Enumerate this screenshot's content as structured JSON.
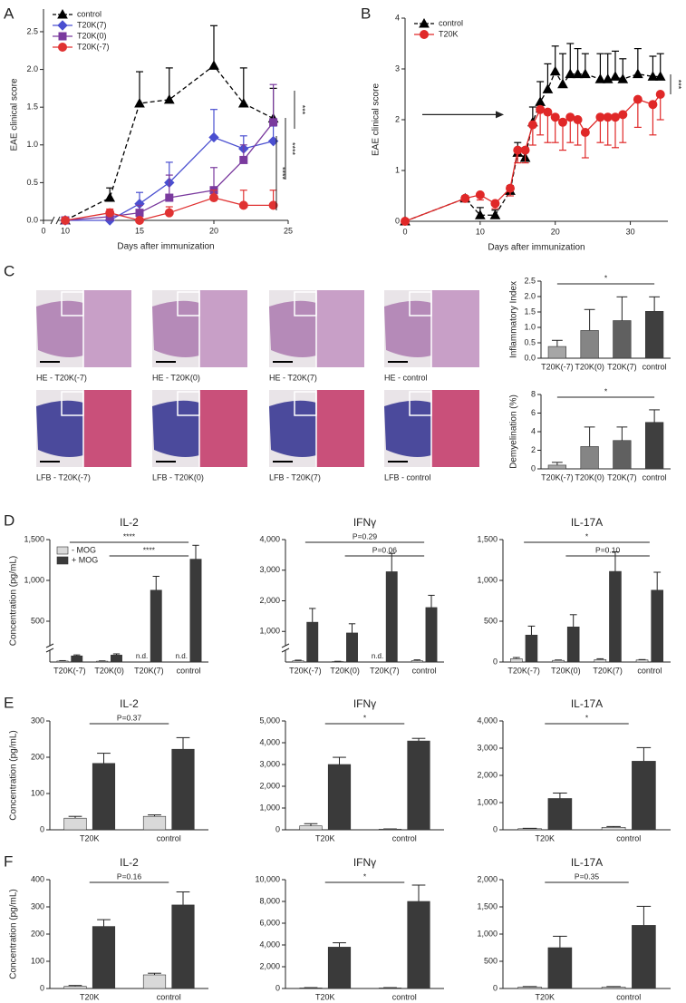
{
  "figure": {
    "panels": [
      "A",
      "B",
      "C",
      "D",
      "E",
      "F"
    ],
    "images": [
      "HE - T20K(-7)",
      "HE - T20K(0)",
      "HE - T20K(7)",
      "HE - control",
      "LFB - T20K(-7)",
      "LFB - T20K(0)",
      "LFB - T20K(7)",
      "LFB - control"
    ]
  },
  "chart_data": [
    {
      "type": "line",
      "xlabel": "Days after immunization",
      "ylabel": "EAE clinical score",
      "x": [
        10,
        13,
        15,
        17,
        20,
        22,
        24
      ],
      "xlim": [
        0,
        25
      ],
      "xticks": [
        0,
        10,
        15,
        20,
        25
      ],
      "x_axis_break": true,
      "ylim": [
        0,
        2.8
      ],
      "yticks": [
        {
          "value": 0,
          "label": "0.0"
        },
        0.5,
        {
          "value": 1,
          "label": "1.0"
        },
        1.5,
        {
          "value": 2,
          "label": "2.0"
        },
        2.5
      ],
      "legend": "upper left",
      "annotations": [
        "***",
        "****",
        "****"
      ],
      "series": [
        {
          "name": "control",
          "color": "#000000",
          "marker": "triangle",
          "dash": true,
          "error_direction": "up",
          "values": [
            0,
            0.3,
            1.55,
            1.6,
            2.05,
            1.55,
            1.35
          ],
          "errors": [
            0,
            0.13,
            0.42,
            0.42,
            0.53,
            0.47,
            0.4
          ]
        },
        {
          "name": "T20K(7)",
          "color": "#4a4fd0",
          "marker": "diamond",
          "dash": false,
          "error_direction": "up",
          "values": [
            0,
            0,
            0.22,
            0.5,
            1.1,
            0.95,
            1.05
          ],
          "errors": [
            0,
            0,
            0.15,
            0.27,
            0.37,
            0.17,
            0.2
          ]
        },
        {
          "name": "T20K(0)",
          "color": "#7a3a9e",
          "marker": "square",
          "dash": false,
          "error_direction": "up",
          "values": [
            0,
            0.05,
            0.1,
            0.3,
            0.4,
            0.8,
            1.3
          ],
          "errors": [
            0,
            0.03,
            0.1,
            0.3,
            0.3,
            0.2,
            0.5
          ]
        },
        {
          "name": "T20K(-7)",
          "color": "#e03232",
          "marker": "circle",
          "dash": false,
          "error_direction": "up",
          "values": [
            0,
            0.1,
            0,
            0.1,
            0.3,
            0.2,
            0.2
          ],
          "errors": [
            0,
            0.05,
            0,
            0.08,
            0.1,
            0.2,
            0.2
          ]
        }
      ]
    },
    {
      "type": "line",
      "xlabel": "Days after immunization",
      "ylabel": "EAE clinical score",
      "x": [
        0,
        8,
        10,
        12,
        14,
        15,
        16,
        17,
        18,
        19,
        20,
        21,
        22,
        23,
        24,
        26,
        27,
        28,
        29,
        31,
        33,
        34
      ],
      "xlim": [
        0,
        35
      ],
      "xticks": [
        0,
        10,
        20,
        30
      ],
      "ylim": [
        0,
        4
      ],
      "yticks": [
        0,
        1,
        2,
        3,
        4
      ],
      "legend": "upper left",
      "annotations": [
        "***"
      ],
      "series": [
        {
          "name": "control",
          "color": "#000000",
          "marker": "triangle",
          "dash": true,
          "error_direction": "up",
          "values": [
            0,
            0.45,
            0.12,
            0.12,
            0.6,
            1.35,
            1.25,
            1.95,
            2.35,
            2.6,
            2.95,
            2.7,
            2.9,
            2.9,
            2.9,
            2.8,
            2.8,
            2.85,
            2.8,
            2.9,
            2.85,
            2.85
          ],
          "errors": [
            0,
            0.05,
            0.15,
            0.1,
            0.1,
            0.2,
            0.2,
            0.3,
            0.4,
            0.5,
            0.5,
            0.6,
            0.6,
            0.5,
            0.4,
            0.5,
            0.5,
            0.5,
            0.4,
            0.5,
            0.4,
            0.45
          ]
        },
        {
          "name": "T20K",
          "color": "#e02828",
          "marker": "circle",
          "dash": false,
          "error_direction": "down",
          "values": [
            0,
            0.45,
            0.52,
            0.35,
            0.65,
            1.4,
            1.4,
            1.9,
            2.2,
            2.15,
            2.05,
            1.95,
            2.05,
            2.0,
            1.75,
            2.05,
            2.05,
            2.05,
            2.1,
            2.4,
            2.3,
            2.5
          ],
          "errors": [
            0,
            0.05,
            0.1,
            0.1,
            0.15,
            0.25,
            0.25,
            0.4,
            0.5,
            0.6,
            0.5,
            0.55,
            0.5,
            0.5,
            0.5,
            0.5,
            0.55,
            0.6,
            0.55,
            0.55,
            0.6,
            0.5
          ]
        }
      ]
    },
    {
      "type": "bar",
      "ylabel": "Inflammatory Index",
      "categories": [
        "T20K(-7)",
        "T20K(0)",
        "T20K(7)",
        "control"
      ],
      "ylim": [
        0,
        2.5
      ],
      "yticks": [
        {
          "value": 0,
          "label": "0.0"
        },
        0.5,
        {
          "value": 1,
          "label": "1.0"
        },
        1.5,
        {
          "value": 2,
          "label": "2.0"
        },
        2.5
      ],
      "series": [
        {
          "colors": [
            "#a6a6a6",
            "#858585",
            "#606060",
            "#3f3f3f"
          ],
          "values": [
            0.38,
            0.9,
            1.22,
            1.52
          ],
          "errors": [
            0.2,
            0.68,
            0.77,
            0.47
          ]
        }
      ],
      "brackets": [
        {
          "from": "T20K(-7)",
          "to": "control",
          "label": "*"
        }
      ]
    },
    {
      "type": "bar",
      "ylabel": "Demyelination (%)",
      "categories": [
        "T20K(-7)",
        "T20K(0)",
        "T20K(7)",
        "control"
      ],
      "ylim": [
        0,
        8
      ],
      "yticks": [
        0,
        2,
        4,
        6,
        8
      ],
      "series": [
        {
          "colors": [
            "#a6a6a6",
            "#858585",
            "#606060",
            "#3f3f3f"
          ],
          "values": [
            0.4,
            2.4,
            3.05,
            5.0
          ],
          "errors": [
            0.3,
            2.1,
            1.45,
            1.35
          ]
        }
      ],
      "brackets": [
        {
          "from": "T20K(-7)",
          "to": "control",
          "label": "*"
        }
      ]
    },
    {
      "type": "bar",
      "title": "IL-2",
      "ylabel": "Concentration (pg/mL)",
      "legend": "upper left",
      "y_axis_break": true,
      "categories": [
        "T20K(-7)",
        "T20K(0)",
        "T20K(7)",
        "control"
      ],
      "ylim": [
        0,
        1500
      ],
      "yticks": [
        500,
        {
          "value": 1000,
          "label": "1,000"
        },
        {
          "value": 1500,
          "label": "1,500"
        }
      ],
      "series": [
        {
          "name": "- MOG",
          "color": "#d9d9d9",
          "values": [
            12,
            10,
            null,
            null
          ],
          "errors": [
            5,
            4,
            null,
            null
          ],
          "value_labels": [
            null,
            null,
            "n.d.",
            "n.d."
          ]
        },
        {
          "name": "+ MOG",
          "color": "#3a3a3a",
          "values": [
            75,
            85,
            880,
            1260
          ],
          "errors": [
            12,
            15,
            170,
            170
          ]
        }
      ],
      "brackets": [
        {
          "from": "T20K(-7)",
          "to": "control",
          "label": "****"
        },
        {
          "from": "T20K(0)",
          "to": "control",
          "label": "****"
        }
      ]
    },
    {
      "type": "bar",
      "title": "IFNγ",
      "y_axis_break": true,
      "categories": [
        "T20K(-7)",
        "T20K(0)",
        "T20K(7)",
        "control"
      ],
      "ylim": [
        0,
        4000
      ],
      "yticks": [
        {
          "value": 1000,
          "label": "1,000"
        },
        {
          "value": 2000,
          "label": "2,000"
        },
        {
          "value": 3000,
          "label": "3,000"
        },
        {
          "value": 4000,
          "label": "4,000"
        }
      ],
      "series": [
        {
          "color": "#d9d9d9",
          "values": [
            40,
            15,
            null,
            45
          ],
          "errors": [
            20,
            8,
            null,
            25
          ],
          "value_labels": [
            null,
            null,
            "n.d.",
            null
          ]
        },
        {
          "color": "#3a3a3a",
          "values": [
            1300,
            950,
            2950,
            1780
          ],
          "errors": [
            450,
            300,
            600,
            400
          ]
        }
      ],
      "brackets": [
        {
          "from": "T20K(-7)",
          "to": "control",
          "label": "P=0.29"
        },
        {
          "from": "T20K(0)",
          "to": "control",
          "label": "P=0.06"
        }
      ]
    },
    {
      "type": "bar",
      "title": "IL-17A",
      "categories": [
        "T20K(-7)",
        "T20K(0)",
        "T20K(7)",
        "control"
      ],
      "ylim": [
        0,
        1500
      ],
      "yticks": [
        0,
        500,
        {
          "value": 1000,
          "label": "1,000"
        },
        {
          "value": 1500,
          "label": "1,500"
        }
      ],
      "series": [
        {
          "color": "#d9d9d9",
          "values": [
            40,
            20,
            30,
            25
          ],
          "errors": [
            15,
            5,
            10,
            5
          ]
        },
        {
          "color": "#3a3a3a",
          "values": [
            330,
            430,
            1110,
            880
          ],
          "errors": [
            110,
            150,
            240,
            220
          ]
        }
      ],
      "brackets": [
        {
          "from": "T20K(-7)",
          "to": "control",
          "label": "*"
        },
        {
          "from": "T20K(0)",
          "to": "control",
          "label": "P=0.10"
        }
      ]
    },
    {
      "type": "bar",
      "title": "IL-2",
      "ylabel": "Concentration (pg/mL)",
      "categories": [
        "T20K",
        "control"
      ],
      "ylim": [
        0,
        300
      ],
      "yticks": [
        0,
        100,
        200,
        300
      ],
      "series": [
        {
          "color": "#d9d9d9",
          "values": [
            32,
            37
          ],
          "errors": [
            5,
            4
          ]
        },
        {
          "color": "#3a3a3a",
          "values": [
            183,
            222
          ],
          "errors": [
            28,
            32
          ]
        }
      ],
      "brackets": [
        {
          "from": "T20K",
          "to": "control",
          "label": "P=0.37"
        }
      ]
    },
    {
      "type": "bar",
      "title": "IFNγ",
      "categories": [
        "T20K",
        "control"
      ],
      "ylim": [
        0,
        5000
      ],
      "yticks": [
        0,
        {
          "value": 1000,
          "label": "1,000"
        },
        {
          "value": 2000,
          "label": "2,000"
        },
        {
          "value": 3000,
          "label": "3,000"
        },
        {
          "value": 4000,
          "label": "4,000"
        },
        {
          "value": 5000,
          "label": "5,000"
        }
      ],
      "series": [
        {
          "color": "#d9d9d9",
          "values": [
            180,
            30
          ],
          "errors": [
            100,
            10
          ]
        },
        {
          "color": "#3a3a3a",
          "values": [
            3000,
            4080
          ],
          "errors": [
            330,
            120
          ]
        }
      ],
      "brackets": [
        {
          "from": "T20K",
          "to": "control",
          "label": "*"
        }
      ]
    },
    {
      "type": "bar",
      "title": "IL-17A",
      "categories": [
        "T20K",
        "control"
      ],
      "ylim": [
        0,
        4000
      ],
      "yticks": [
        0,
        {
          "value": 1000,
          "label": "1,000"
        },
        {
          "value": 2000,
          "label": "2,000"
        },
        {
          "value": 3000,
          "label": "3,000"
        },
        {
          "value": 4000,
          "label": "4,000"
        }
      ],
      "series": [
        {
          "color": "#d9d9d9",
          "values": [
            40,
            90
          ],
          "errors": [
            15,
            30
          ]
        },
        {
          "color": "#3a3a3a",
          "values": [
            1150,
            2520
          ],
          "errors": [
            200,
            500
          ]
        }
      ],
      "brackets": [
        {
          "from": "T20K",
          "to": "control",
          "label": "*"
        }
      ]
    },
    {
      "type": "bar",
      "title": "IL-2",
      "ylabel": "Concentration (pg/mL)",
      "categories": [
        "T20K",
        "control"
      ],
      "ylim": [
        0,
        400
      ],
      "yticks": [
        0,
        100,
        200,
        300,
        400
      ],
      "series": [
        {
          "color": "#d9d9d9",
          "values": [
            8,
            50
          ],
          "errors": [
            3,
            6
          ]
        },
        {
          "color": "#3a3a3a",
          "values": [
            228,
            307
          ],
          "errors": [
            25,
            48
          ]
        }
      ],
      "brackets": [
        {
          "from": "T20K",
          "to": "control",
          "label": "P=0.16"
        }
      ]
    },
    {
      "type": "bar",
      "title": "IFNγ",
      "categories": [
        "T20K",
        "control"
      ],
      "ylim": [
        0,
        10000
      ],
      "yticks": [
        0,
        {
          "value": 2000,
          "label": "2,000"
        },
        {
          "value": 4000,
          "label": "4,000"
        },
        {
          "value": 6000,
          "label": "6,000"
        },
        {
          "value": 8000,
          "label": "8,000"
        },
        {
          "value": 10000,
          "label": "10,000"
        }
      ],
      "series": [
        {
          "color": "#d9d9d9",
          "values": [
            50,
            50
          ],
          "errors": [
            30,
            30
          ]
        },
        {
          "color": "#3a3a3a",
          "values": [
            3800,
            8000
          ],
          "errors": [
            400,
            1500
          ]
        }
      ],
      "brackets": [
        {
          "from": "T20K",
          "to": "control",
          "label": "*"
        }
      ]
    },
    {
      "type": "bar",
      "title": "IL-17A",
      "categories": [
        "T20K",
        "control"
      ],
      "ylim": [
        0,
        2000
      ],
      "yticks": [
        0,
        500,
        {
          "value": 1000,
          "label": "1,000"
        },
        {
          "value": 1500,
          "label": "1,500"
        },
        {
          "value": 2000,
          "label": "2,000"
        }
      ],
      "series": [
        {
          "color": "#d9d9d9",
          "values": [
            25,
            25
          ],
          "errors": [
            10,
            10
          ]
        },
        {
          "color": "#3a3a3a",
          "values": [
            750,
            1160
          ],
          "errors": [
            210,
            350
          ]
        }
      ],
      "brackets": [
        {
          "from": "T20K",
          "to": "control",
          "label": "P=0.35"
        }
      ]
    }
  ]
}
